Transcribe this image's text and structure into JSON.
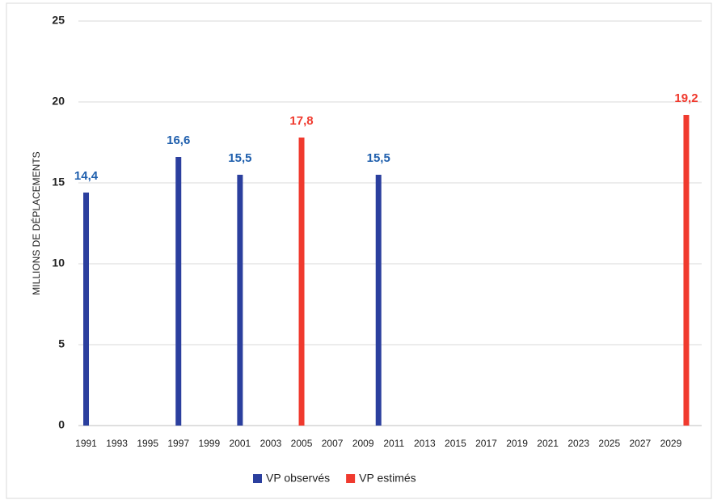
{
  "chart_data": {
    "type": "bar",
    "y_label": "MILLIONS DE DÉPLACEMENTS",
    "xlim": [
      1990.5,
      2031
    ],
    "xticks": [
      1991,
      1993,
      1995,
      1997,
      1999,
      2001,
      2003,
      2005,
      2007,
      2009,
      2011,
      2013,
      2015,
      2017,
      2019,
      2021,
      2023,
      2025,
      2027,
      2029
    ],
    "ylim": [
      0,
      25
    ],
    "yticks": [
      0,
      5,
      10,
      15,
      20,
      25
    ],
    "grid": true,
    "legend": "bottom",
    "series": [
      {
        "name": "VP observés",
        "color": "#2b3f9e",
        "label_color": "#1f5fad",
        "x": [
          1991,
          1997,
          2001,
          2010
        ],
        "values": [
          14.4,
          16.6,
          15.5,
          15.5
        ],
        "value_labels": [
          "14,4",
          "16,6",
          "15,5",
          "15,5"
        ]
      },
      {
        "name": "VP estimés",
        "color": "#f03a2e",
        "label_color": "#f03a2e",
        "x": [
          2005,
          2030
        ],
        "values": [
          17.8,
          19.2
        ],
        "value_labels": [
          "17,8",
          "19,2"
        ]
      }
    ]
  }
}
